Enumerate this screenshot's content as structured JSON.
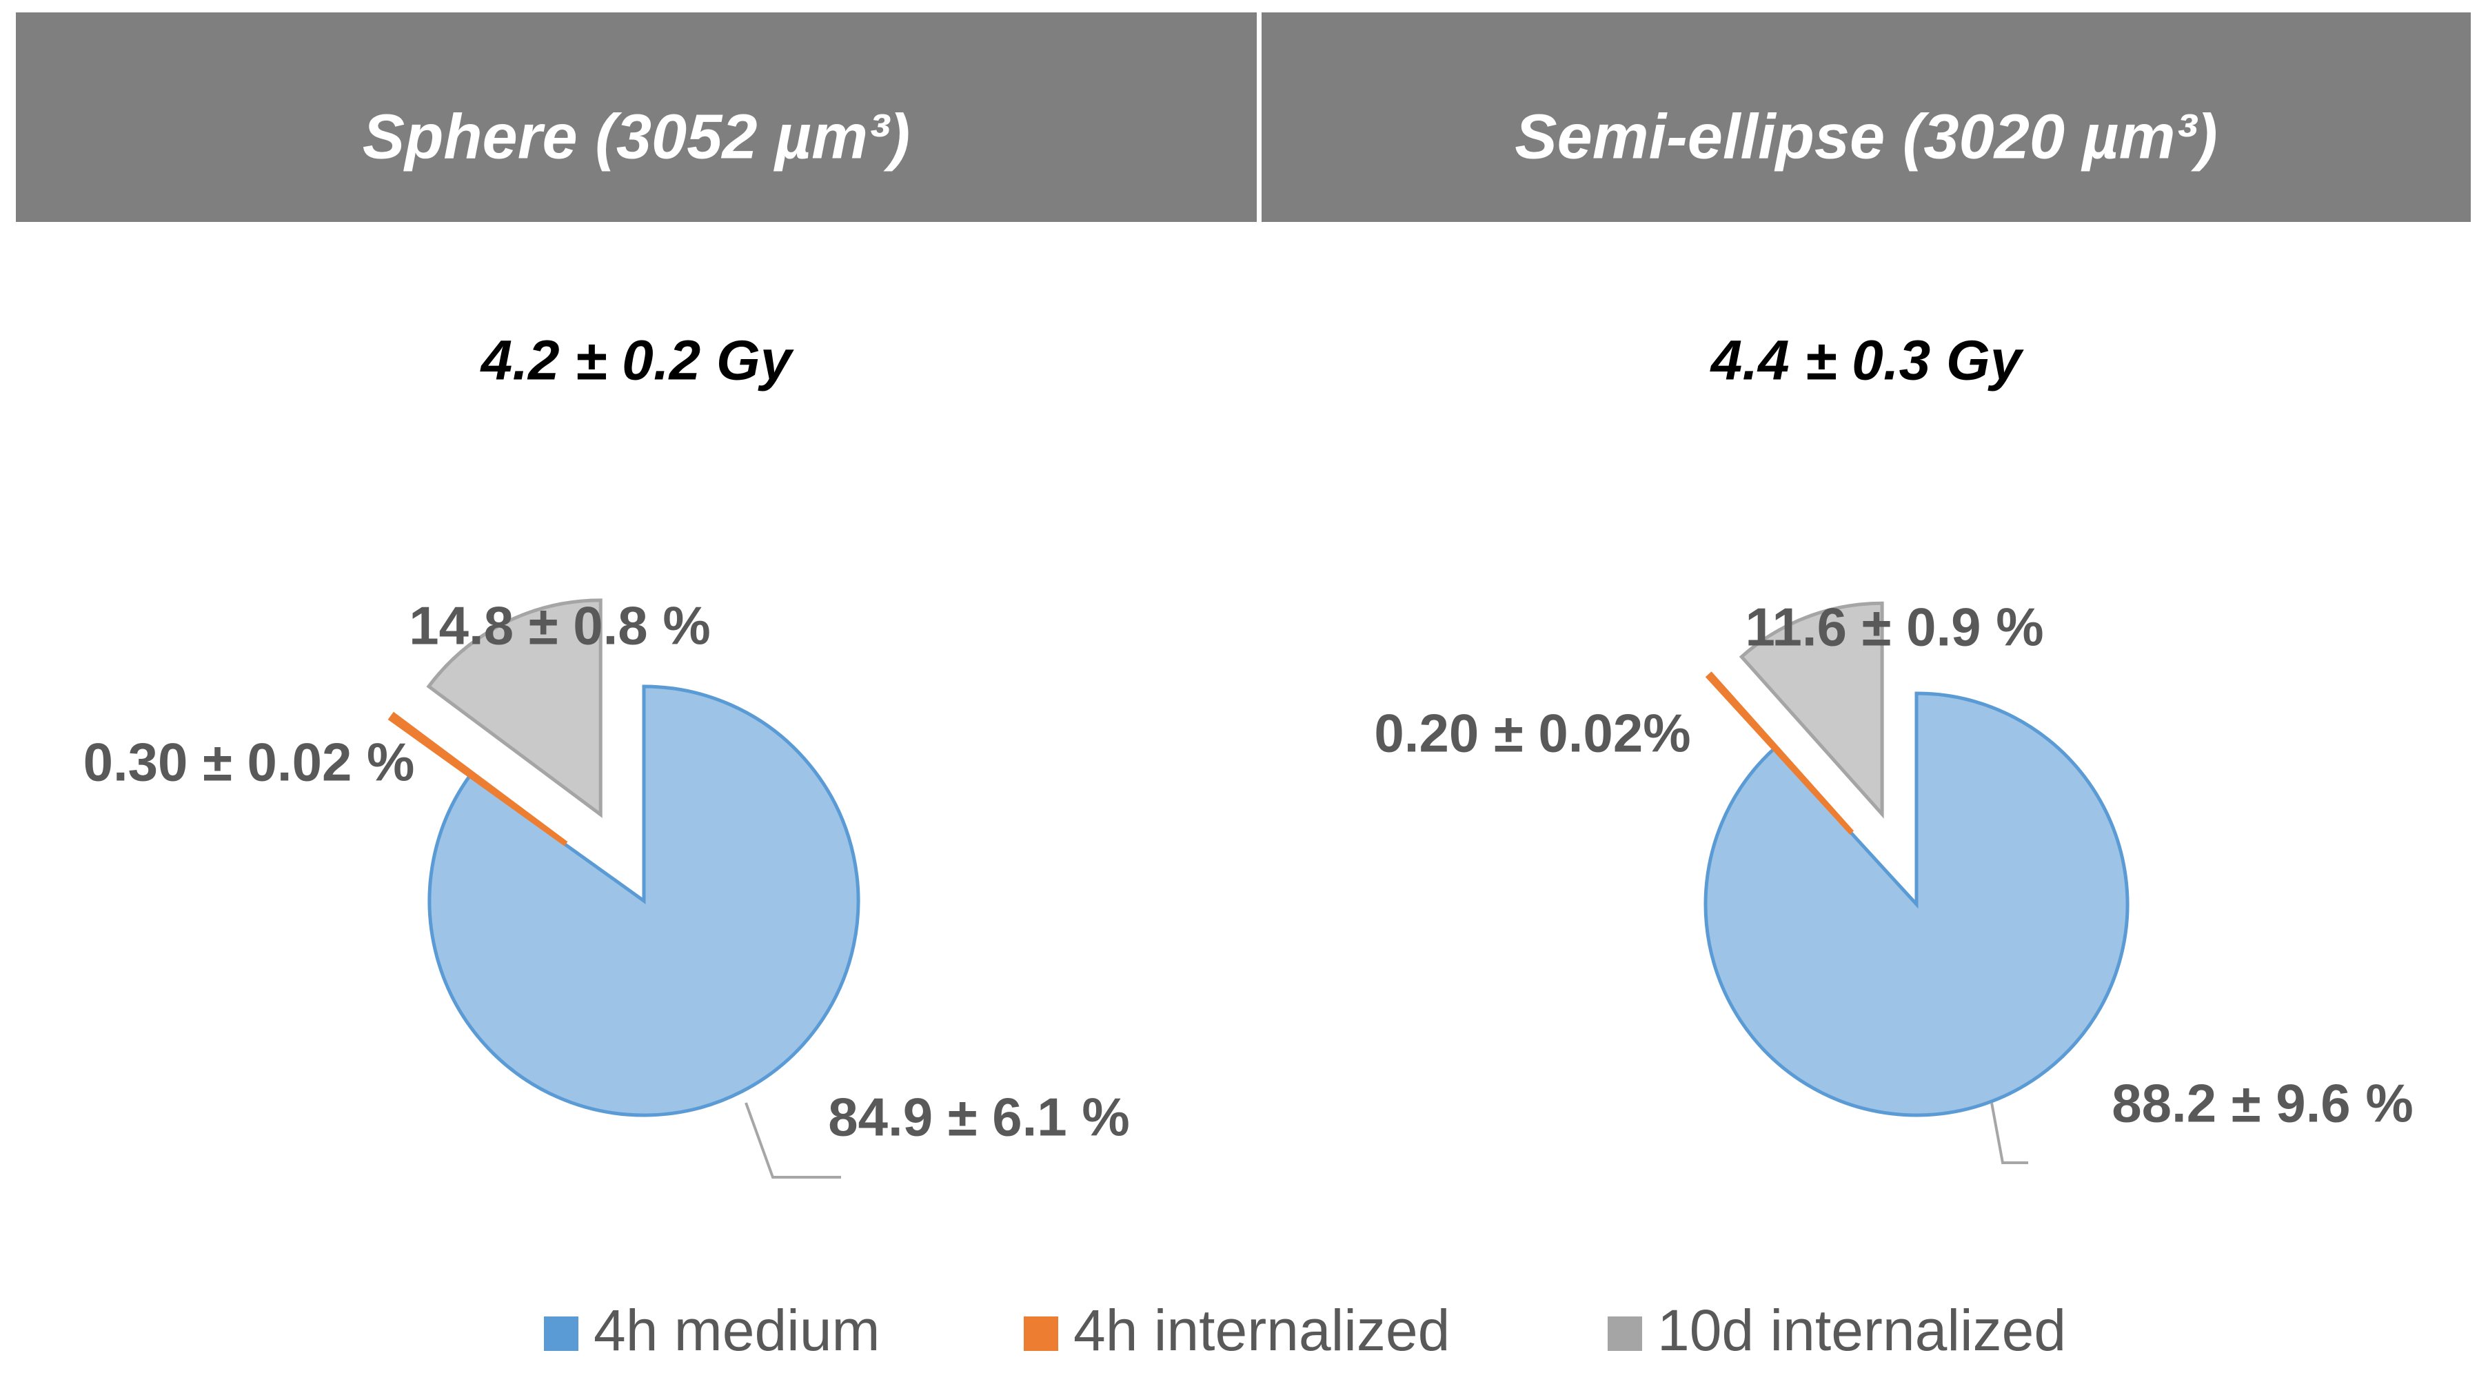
{
  "chart_data": [
    {
      "type": "pie",
      "title": "Sphere (3052 µm³)",
      "subtitle": "4.2 ± 0.2 Gy",
      "categories": [
        "4h medium",
        "4h internalized",
        "10d internalized"
      ],
      "values": [
        84.9,
        0.3,
        14.8
      ],
      "value_labels": [
        "84.9 ± 6.1 %",
        "0.30 ± 0.02 %",
        "14.8 ± 0.8 %"
      ],
      "colors": [
        "#5b9bd5",
        "#ed7d31",
        "#a5a5a5"
      ]
    },
    {
      "type": "pie",
      "title": "Semi-ellipse (3020 µm³)",
      "subtitle": "4.4 ± 0.3 Gy",
      "categories": [
        "4h medium",
        "4h internalized",
        "10d internalized"
      ],
      "values": [
        88.2,
        0.2,
        11.6
      ],
      "value_labels": [
        "88.2 ± 9.6 %",
        "0.20 ± 0.02%",
        "11.6 ± 0.9 %"
      ],
      "colors": [
        "#5b9bd5",
        "#ed7d31",
        "#a5a5a5"
      ]
    }
  ]
}
